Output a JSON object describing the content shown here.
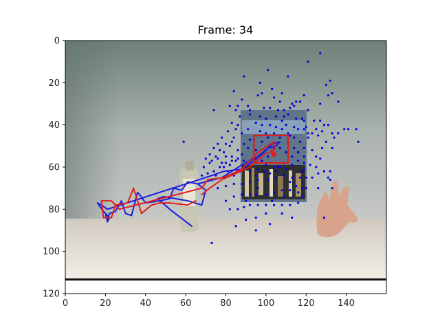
{
  "chart_data": {
    "type": "scatter",
    "title": "Frame: 34",
    "xlabel": "",
    "ylabel": "",
    "xlim": [
      0,
      160
    ],
    "ylim": [
      120,
      0
    ],
    "y_inverted": true,
    "xticks": [
      0,
      20,
      40,
      60,
      80,
      100,
      120,
      140
    ],
    "yticks": [
      0,
      20,
      40,
      60,
      80,
      100,
      120
    ],
    "grid": false,
    "legend": "none",
    "background": "camera frame image",
    "colors": {
      "particles": "#0000dd",
      "true_track": "#1c1cdd",
      "estimate_track": "#e01e1e",
      "box": "#e01e1e"
    },
    "series": [
      {
        "values": [
          [
            63,
            88
          ],
          [
            52,
            80
          ],
          [
            46,
            75
          ],
          [
            49,
            74
          ],
          [
            61,
            76
          ],
          [
            68,
            78
          ],
          [
            70,
            71
          ],
          [
            66,
            68
          ],
          [
            61,
            67
          ],
          [
            58,
            71
          ],
          [
            54,
            70
          ],
          [
            52,
            75
          ],
          [
            47,
            76
          ],
          [
            40,
            77
          ],
          [
            37,
            73
          ],
          [
            36,
            72
          ],
          [
            33,
            83
          ],
          [
            30,
            82
          ],
          [
            28,
            76
          ],
          [
            25,
            81
          ],
          [
            22,
            82
          ],
          [
            21,
            85
          ],
          [
            20,
            82
          ],
          [
            21,
            86
          ],
          [
            22,
            84
          ],
          [
            19,
            81
          ],
          [
            16,
            77
          ],
          [
            18,
            78
          ],
          [
            21,
            80
          ],
          [
            73,
            64
          ],
          [
            79,
            62
          ],
          [
            88,
            61
          ],
          [
            94,
            57
          ],
          [
            99,
            53
          ],
          [
            103,
            49
          ],
          [
            107,
            48
          ],
          [
            105,
            50
          ],
          [
            101,
            51
          ],
          [
            96,
            55
          ],
          [
            88,
            59
          ],
          [
            78,
            65
          ],
          [
            66,
            68
          ]
        ]
      },
      {
        "values": [
          [
            65,
            76
          ],
          [
            61,
            78
          ],
          [
            52,
            77
          ],
          [
            47,
            77
          ],
          [
            43,
            78
          ],
          [
            38,
            82
          ],
          [
            34,
            70
          ],
          [
            31,
            77
          ],
          [
            25,
            78
          ],
          [
            23,
            84
          ],
          [
            19,
            84
          ],
          [
            18,
            76
          ],
          [
            23,
            76
          ],
          [
            27,
            80
          ],
          [
            31,
            79
          ],
          [
            68,
            70
          ],
          [
            71,
            66
          ],
          [
            79,
            65
          ],
          [
            88,
            61
          ],
          [
            93,
            56
          ],
          [
            96,
            53
          ],
          [
            101,
            50
          ],
          [
            104,
            48
          ],
          [
            104,
            52
          ],
          [
            99,
            54
          ],
          [
            92,
            60
          ],
          [
            85,
            63
          ],
          [
            78,
            66
          ],
          [
            72,
            70
          ],
          [
            68,
            73
          ]
        ]
      },
      {
        "values": [
          [
            104,
            54
          ],
          [
            103,
            53
          ],
          [
            103,
            52
          ]
        ]
      },
      {
        "values": [
          [
            94,
            45
          ],
          [
            111,
            45
          ],
          [
            111,
            58
          ],
          [
            94,
            58
          ],
          [
            94,
            45
          ]
        ]
      }
    ],
    "particles": [
      [
        127,
        6
      ],
      [
        101,
        14
      ],
      [
        111,
        17
      ],
      [
        121,
        10
      ],
      [
        89,
        17
      ],
      [
        97,
        20
      ],
      [
        103,
        23
      ],
      [
        104,
        27
      ],
      [
        107,
        29
      ],
      [
        96,
        26
      ],
      [
        84,
        24
      ],
      [
        98,
        25
      ],
      [
        108,
        25
      ],
      [
        119,
        26
      ],
      [
        132,
        19
      ],
      [
        130,
        21
      ],
      [
        133,
        25
      ],
      [
        131,
        26
      ],
      [
        127,
        30
      ],
      [
        136,
        29
      ],
      [
        113,
        30
      ],
      [
        114,
        31
      ],
      [
        115,
        29
      ],
      [
        117,
        29
      ],
      [
        86,
        31
      ],
      [
        88,
        28
      ],
      [
        91,
        31
      ],
      [
        92,
        33
      ],
      [
        99,
        32
      ],
      [
        102,
        32
      ],
      [
        106,
        33
      ],
      [
        109,
        33
      ],
      [
        112,
        32
      ],
      [
        121,
        33
      ],
      [
        111,
        35
      ],
      [
        109,
        36
      ],
      [
        118,
        37
      ],
      [
        115,
        37
      ],
      [
        74,
        33
      ],
      [
        82,
        31
      ],
      [
        85,
        33
      ],
      [
        87,
        36
      ],
      [
        92,
        35
      ],
      [
        97,
        36
      ],
      [
        100,
        37
      ],
      [
        105,
        36
      ],
      [
        108,
        38
      ],
      [
        119,
        38
      ],
      [
        124,
        38
      ],
      [
        127,
        38
      ],
      [
        129,
        40
      ],
      [
        131,
        40
      ],
      [
        128,
        43
      ],
      [
        125,
        42
      ],
      [
        120,
        41
      ],
      [
        119,
        42
      ],
      [
        116,
        42
      ],
      [
        121,
        44
      ],
      [
        123,
        44
      ],
      [
        126,
        45
      ],
      [
        133,
        44
      ],
      [
        136,
        44
      ],
      [
        139,
        42
      ],
      [
        141,
        42
      ],
      [
        145,
        42
      ],
      [
        146,
        48
      ],
      [
        134,
        46
      ],
      [
        133,
        51
      ],
      [
        130,
        48
      ],
      [
        128,
        51
      ],
      [
        123,
        52
      ],
      [
        125,
        55
      ],
      [
        127,
        56
      ],
      [
        122,
        59
      ],
      [
        125,
        60
      ],
      [
        129,
        62
      ],
      [
        132,
        62
      ],
      [
        126,
        63
      ],
      [
        119,
        61
      ],
      [
        120,
        65
      ],
      [
        123,
        65
      ],
      [
        131,
        65
      ],
      [
        132,
        66
      ],
      [
        133,
        70
      ],
      [
        126,
        70
      ],
      [
        120,
        70
      ],
      [
        115,
        69
      ],
      [
        118,
        74
      ],
      [
        116,
        77
      ],
      [
        112,
        78
      ],
      [
        108,
        78
      ],
      [
        104,
        78
      ],
      [
        100,
        78
      ],
      [
        96,
        78
      ],
      [
        92,
        78
      ],
      [
        89,
        79
      ],
      [
        86,
        80
      ],
      [
        82,
        80
      ],
      [
        80,
        76
      ],
      [
        84,
        74
      ],
      [
        88,
        73
      ],
      [
        92,
        73
      ],
      [
        95,
        73
      ],
      [
        100,
        73
      ],
      [
        104,
        72
      ],
      [
        108,
        71
      ],
      [
        112,
        71
      ],
      [
        116,
        72
      ],
      [
        118,
        70
      ],
      [
        117,
        65
      ],
      [
        113,
        65
      ],
      [
        109,
        64
      ],
      [
        105,
        65
      ],
      [
        101,
        66
      ],
      [
        96,
        66
      ],
      [
        92,
        67
      ],
      [
        88,
        68
      ],
      [
        84,
        68
      ],
      [
        80,
        69
      ],
      [
        76,
        70
      ],
      [
        75,
        64
      ],
      [
        79,
        60
      ],
      [
        82,
        59
      ],
      [
        85,
        57
      ],
      [
        88,
        54
      ],
      [
        91,
        51
      ],
      [
        94,
        47
      ],
      [
        97,
        43
      ],
      [
        98,
        40
      ],
      [
        102,
        40
      ],
      [
        105,
        41
      ],
      [
        108,
        42
      ],
      [
        111,
        44
      ],
      [
        114,
        46
      ],
      [
        117,
        48
      ],
      [
        119,
        51
      ],
      [
        119,
        55
      ],
      [
        116,
        57
      ],
      [
        113,
        59
      ],
      [
        110,
        61
      ],
      [
        107,
        60
      ],
      [
        104,
        60
      ],
      [
        100,
        59
      ],
      [
        96,
        61
      ],
      [
        92,
        62
      ],
      [
        87,
        62
      ],
      [
        84,
        64
      ],
      [
        81,
        62
      ],
      [
        78,
        58
      ],
      [
        79,
        53
      ],
      [
        82,
        50
      ],
      [
        84,
        46
      ],
      [
        85,
        42
      ],
      [
        86,
        40
      ],
      [
        83,
        39
      ],
      [
        81,
        43
      ],
      [
        78,
        46
      ],
      [
        76,
        49
      ],
      [
        74,
        51
      ],
      [
        72,
        54
      ],
      [
        70,
        56
      ],
      [
        73,
        57
      ],
      [
        76,
        56
      ],
      [
        80,
        55
      ],
      [
        83,
        55
      ],
      [
        86,
        52
      ],
      [
        89,
        49
      ],
      [
        92,
        47
      ],
      [
        95,
        52
      ],
      [
        98,
        48
      ],
      [
        101,
        46
      ],
      [
        104,
        44
      ],
      [
        107,
        46
      ],
      [
        111,
        48
      ],
      [
        114,
        51
      ],
      [
        116,
        53
      ],
      [
        113,
        55
      ],
      [
        110,
        53
      ],
      [
        107,
        51
      ],
      [
        104,
        51
      ],
      [
        101,
        55
      ],
      [
        98,
        57
      ],
      [
        95,
        58
      ],
      [
        92,
        57
      ],
      [
        89,
        57
      ],
      [
        86,
        56
      ],
      [
        83,
        57
      ],
      [
        80,
        58
      ],
      [
        77,
        60
      ],
      [
        74,
        62
      ],
      [
        71,
        63
      ],
      [
        68,
        64
      ],
      [
        69,
        60
      ],
      [
        72,
        58
      ],
      [
        59,
        48
      ],
      [
        85,
        88
      ],
      [
        90,
        85
      ],
      [
        95,
        84
      ],
      [
        102,
        87
      ],
      [
        108,
        82
      ],
      [
        113,
        84
      ],
      [
        129,
        84
      ],
      [
        73,
        96
      ],
      [
        100,
        82
      ],
      [
        112,
        45
      ],
      [
        95,
        90
      ],
      [
        106,
        60
      ],
      [
        119,
        58
      ],
      [
        121,
        46
      ],
      [
        96,
        70
      ],
      [
        103,
        76
      ],
      [
        109,
        74
      ],
      [
        90,
        76
      ],
      [
        95,
        64
      ],
      [
        112,
        67
      ],
      [
        91,
        42
      ],
      [
        95,
        39
      ],
      [
        100,
        44
      ],
      [
        110,
        40
      ],
      [
        114,
        41
      ],
      [
        88,
        44
      ],
      [
        83,
        48
      ],
      [
        80,
        49
      ],
      [
        77,
        52
      ],
      [
        75,
        55
      ],
      [
        99,
        62
      ],
      [
        102,
        63
      ],
      [
        105,
        62
      ],
      [
        109,
        58
      ],
      [
        118,
        62
      ]
    ]
  }
}
